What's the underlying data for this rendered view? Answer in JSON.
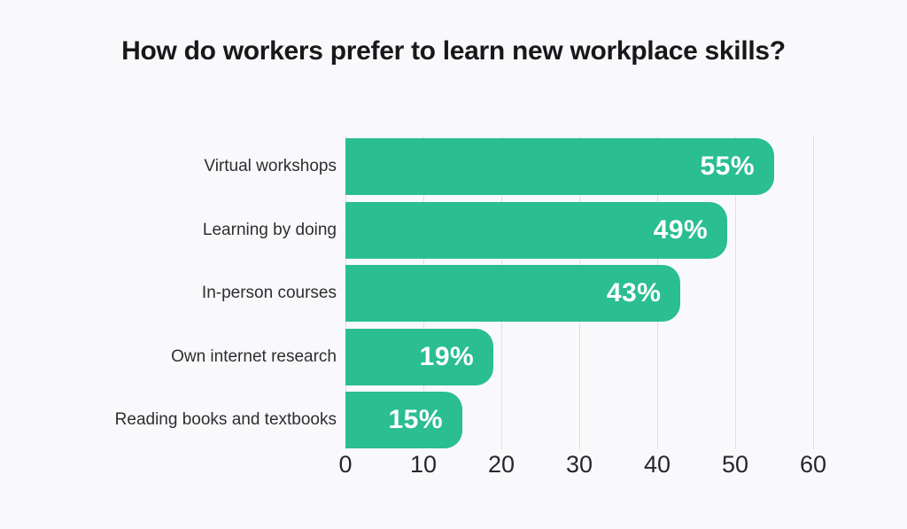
{
  "title": "How do workers prefer to learn new workplace skills?",
  "chart_data": {
    "type": "bar",
    "orientation": "horizontal",
    "title": "How do workers prefer to learn new workplace skills?",
    "categories": [
      "Virtual workshops",
      "Learning by doing",
      "In-person courses",
      "Own internet research",
      "Reading books and textbooks"
    ],
    "values": [
      55,
      49,
      43,
      19,
      15
    ],
    "value_labels": [
      "55%",
      "49%",
      "43%",
      "19%",
      "15%"
    ],
    "xlabel": "",
    "ylabel": "",
    "xlim": [
      0,
      60
    ],
    "xticks": [
      "0",
      "10",
      "20",
      "30",
      "40",
      "50",
      "60"
    ],
    "grid": true,
    "legend": false
  },
  "colors": {
    "bar": "#2abe90",
    "background": "#f9f9fb",
    "gridline": "#dfdfe2",
    "title_text": "#17181a",
    "category_text": "#2c2e30",
    "tick_text": "#26272a",
    "value_text": "#ffffff"
  }
}
